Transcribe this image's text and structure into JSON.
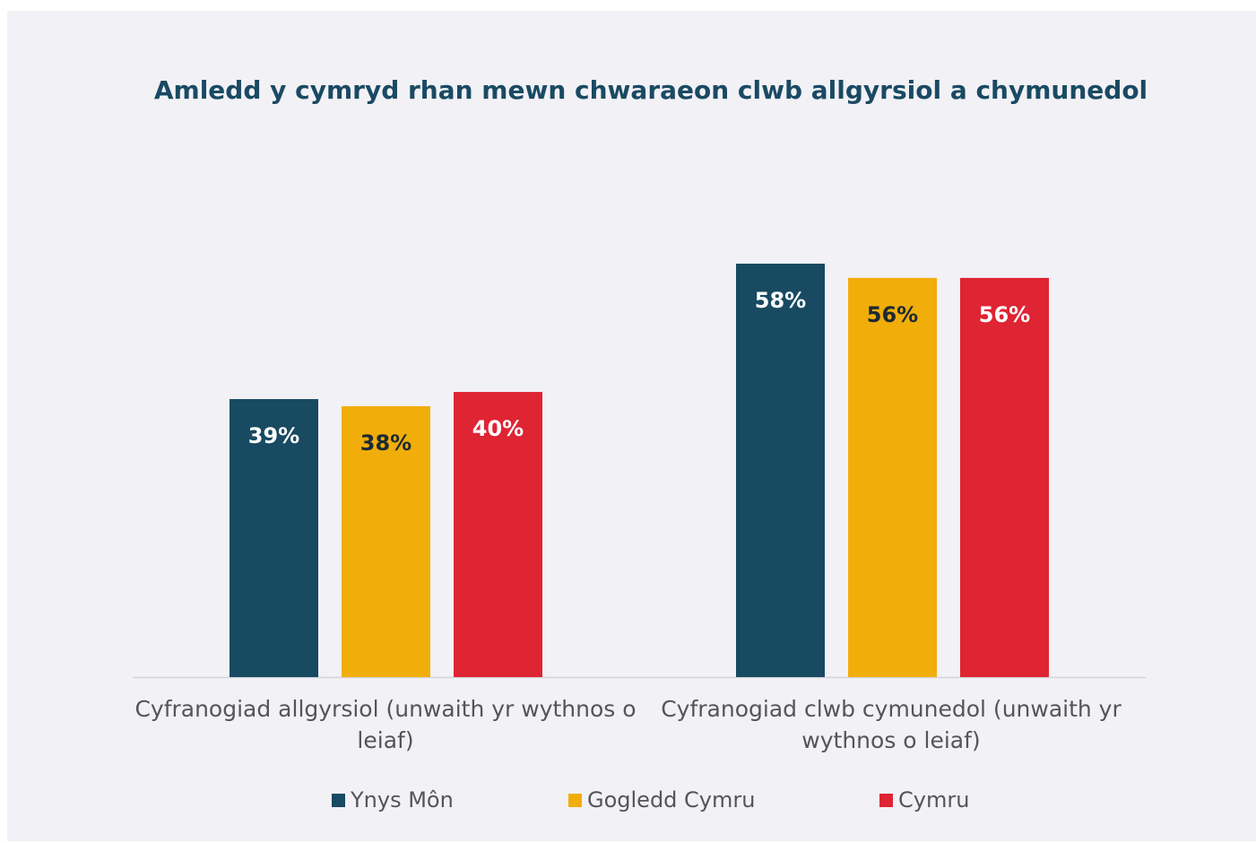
{
  "chart_data": {
    "type": "bar",
    "title": "Amledd y cymryd rhan mewn chwaraeon clwb allgyrsiol a chymunedol",
    "categories": [
      "Cyfranogiad allgyrsiol (unwaith yr wythnos o leiaf)",
      "Cyfranogiad clwb cymunedol (unwaith yr wythnos o leiaf)"
    ],
    "series": [
      {
        "name": "Ynys Môn",
        "color": "#184a62",
        "label_color": "#ffffff",
        "values": [
          39,
          58
        ],
        "labels": [
          "39%",
          "58%"
        ]
      },
      {
        "name": "Gogledd Cymru",
        "color": "#f1ad0a",
        "label_color": "#1c2a33",
        "values": [
          38,
          56
        ],
        "labels": [
          "38%",
          "56%"
        ]
      },
      {
        "name": "Cymru",
        "color": "#df2433",
        "label_color": "#ffffff",
        "values": [
          40,
          56
        ],
        "labels": [
          "40%",
          "56%"
        ]
      }
    ],
    "ylim": [
      0,
      100
    ],
    "grid": false,
    "legend_position": "bottom"
  }
}
